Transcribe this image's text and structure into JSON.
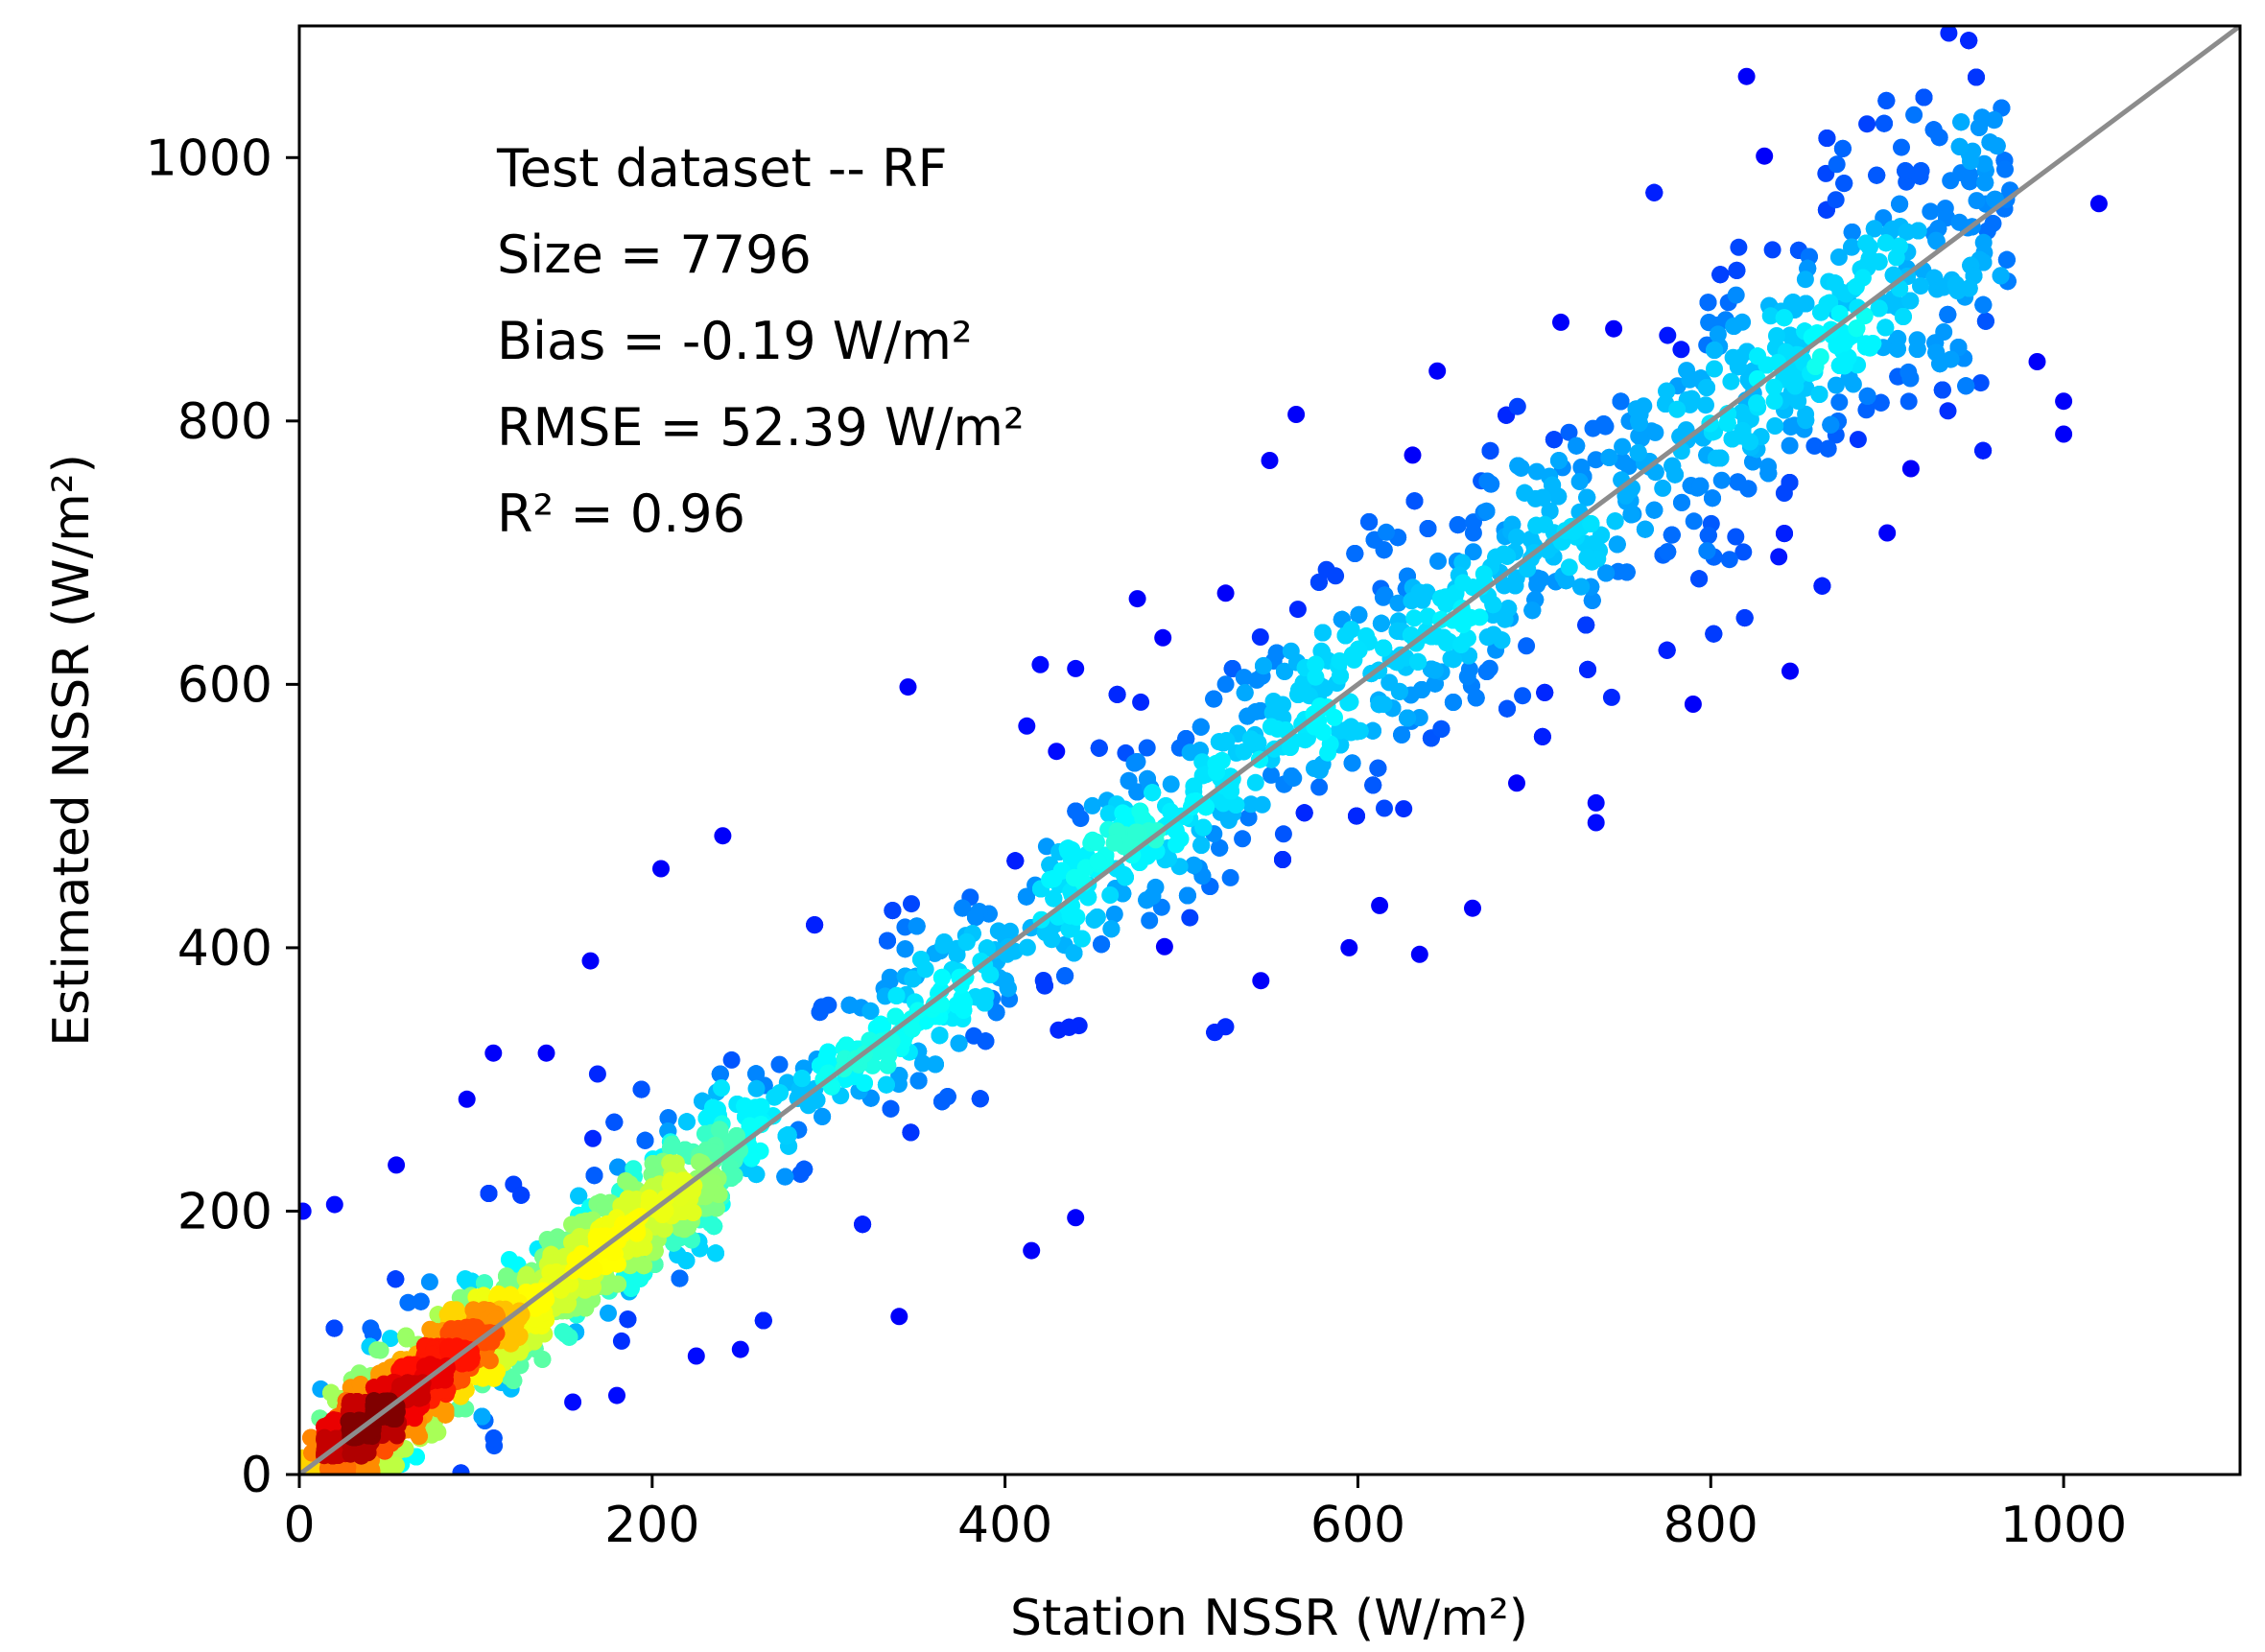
{
  "chart_data": {
    "type": "scatter",
    "xlabel": "Station NSSR (W/m²)",
    "ylabel": "Estimated NSSR (W/m²)",
    "xlim": [
      0,
      1100
    ],
    "ylim": [
      0,
      1100
    ],
    "xticks": [
      "0",
      "200",
      "400",
      "600",
      "800",
      "1000"
    ],
    "yticks": [
      "0",
      "200",
      "400",
      "600",
      "800",
      "1000"
    ],
    "grid": false,
    "colormap": "jet (point density: blue = low, red = high)",
    "reference_line": {
      "x": [
        0,
        1100
      ],
      "y": [
        0,
        1100
      ],
      "color": "#8c8c8c"
    },
    "annotations": [
      "Test dataset -- RF",
      "Size = 7796",
      "Bias = -0.19 W/m²",
      "RMSE = 52.39 W/m²",
      "R² = 0.96"
    ],
    "stats": {
      "size": 7796,
      "bias": -0.19,
      "rmse": 52.39,
      "r2": 0.96
    },
    "sample_points": [
      [
        2,
        200
      ],
      [
        20,
        205
      ],
      [
        55,
        235
      ],
      [
        95,
        285
      ],
      [
        110,
        320
      ],
      [
        140,
        320
      ],
      [
        165,
        390
      ],
      [
        205,
        460
      ],
      [
        240,
        485
      ],
      [
        345,
        598
      ],
      [
        420,
        615
      ],
      [
        440,
        612
      ],
      [
        475,
        665
      ],
      [
        550,
        770
      ],
      [
        565,
        805
      ],
      [
        645,
        838
      ],
      [
        715,
        875
      ],
      [
        745,
        870
      ],
      [
        810,
        890
      ],
      [
        835,
        930
      ],
      [
        960,
        950
      ],
      [
        1020,
        965
      ],
      [
        1000,
        790
      ],
      [
        1000,
        815
      ],
      [
        985,
        845
      ],
      [
        900,
        715
      ],
      [
        845,
        610
      ],
      [
        790,
        585
      ],
      [
        735,
        495
      ],
      [
        735,
        510
      ],
      [
        690,
        525
      ],
      [
        665,
        430
      ],
      [
        635,
        395
      ],
      [
        595,
        400
      ],
      [
        545,
        375
      ],
      [
        525,
        340
      ],
      [
        440,
        195
      ],
      [
        415,
        170
      ],
      [
        340,
        120
      ],
      [
        250,
        95
      ],
      [
        225,
        90
      ],
      [
        180,
        60
      ],
      [
        155,
        55
      ],
      [
        120,
        65
      ],
      [
        75,
        30
      ],
      [
        40,
        5
      ],
      [
        60,
        70
      ],
      [
        80,
        90
      ],
      [
        100,
        110
      ],
      [
        130,
        130
      ],
      [
        300,
        300
      ],
      [
        500,
        500
      ],
      [
        700,
        700
      ],
      [
        850,
        850
      ]
    ]
  },
  "colors": {
    "low_density": "#00007f",
    "mid_density": "#00bfff",
    "high_density": "#ff0000",
    "peak_density": "#7f0000",
    "reference_line": "#8c8c8c"
  }
}
